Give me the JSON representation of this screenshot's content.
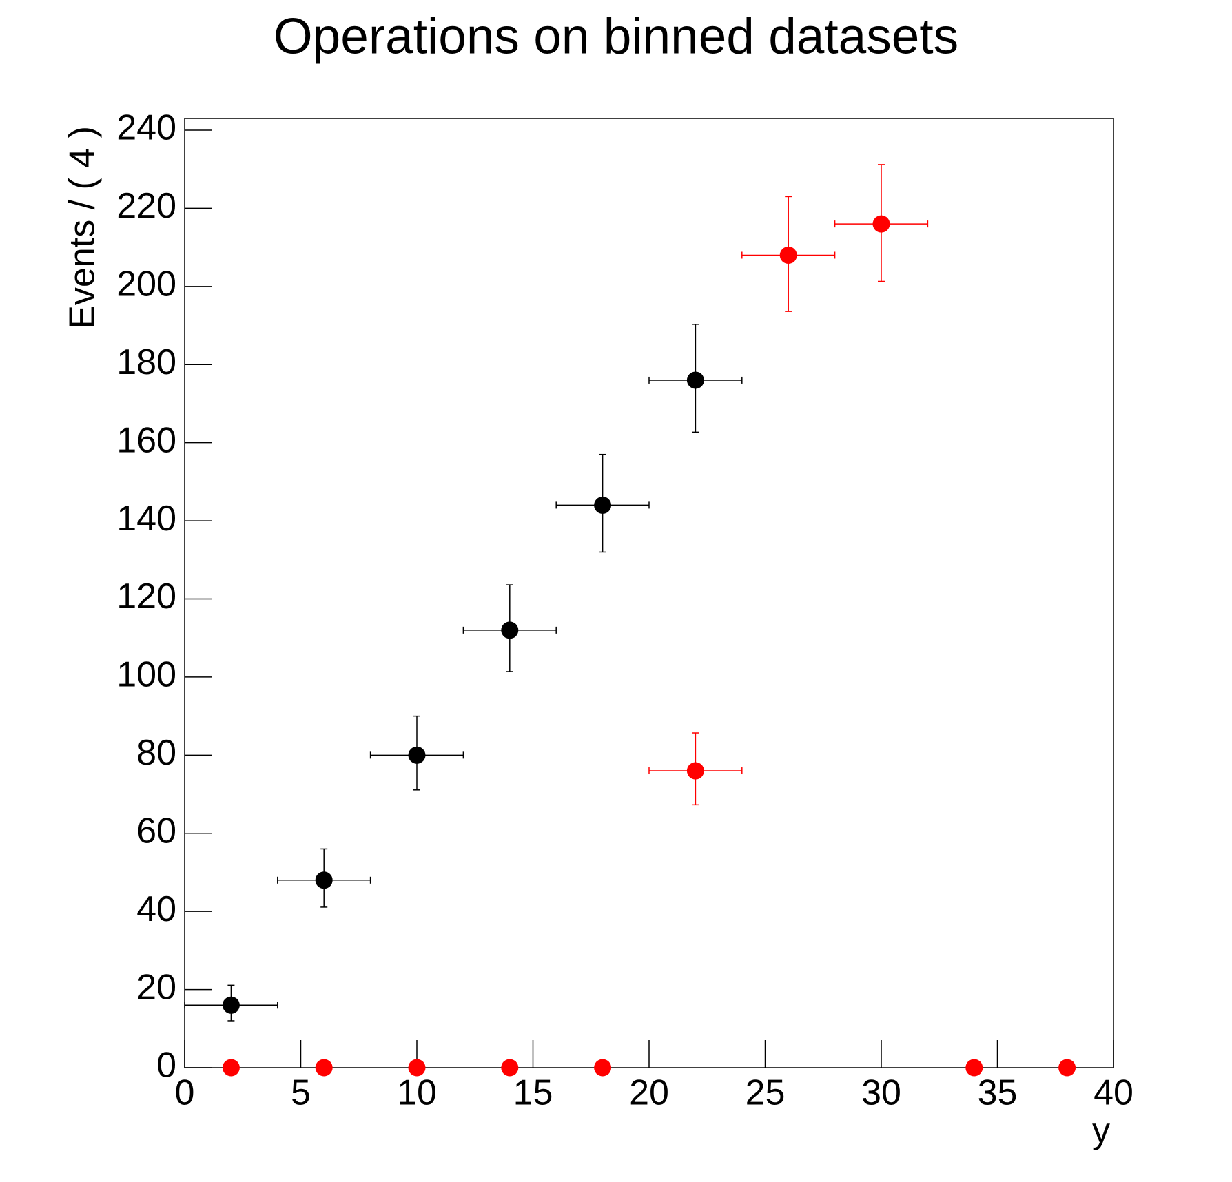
{
  "chart_data": {
    "type": "scatter",
    "title": "Operations on binned datasets",
    "xlabel": "y",
    "ylabel": "Events / ( 4 )",
    "xlim": [
      0,
      40
    ],
    "ylim": [
      0,
      243
    ],
    "xticks": [
      0,
      5,
      10,
      15,
      20,
      25,
      30,
      35,
      40
    ],
    "yticks": [
      0,
      20,
      40,
      60,
      80,
      100,
      120,
      140,
      160,
      180,
      200,
      220,
      240
    ],
    "series": [
      {
        "color": "#000000",
        "x": [
          2,
          6,
          10,
          14,
          18,
          22
        ],
        "values": [
          16,
          48,
          80,
          112,
          144,
          176
        ],
        "xerr": [
          2,
          2,
          2,
          2,
          2,
          2
        ],
        "yerr_low": [
          4,
          6.9,
          8.9,
          10.6,
          12,
          13.3
        ],
        "yerr_high": [
          5.1,
          8,
          10,
          11.6,
          13,
          14.3
        ]
      },
      {
        "color": "#ff0000",
        "x": [
          2,
          6,
          10,
          14,
          18,
          22,
          26,
          30,
          34,
          38
        ],
        "values": [
          0,
          0,
          0,
          0,
          0,
          76,
          208,
          216,
          0,
          0
        ],
        "xerr": [
          0,
          0,
          0,
          0,
          0,
          2,
          2,
          2,
          0,
          0
        ],
        "yerr_low": [
          0,
          0,
          0,
          0,
          0,
          8.7,
          14.4,
          14.7,
          0,
          0
        ],
        "yerr_high": [
          0,
          0,
          0,
          0,
          0,
          9.7,
          15,
          15.2,
          0,
          0
        ]
      }
    ]
  }
}
